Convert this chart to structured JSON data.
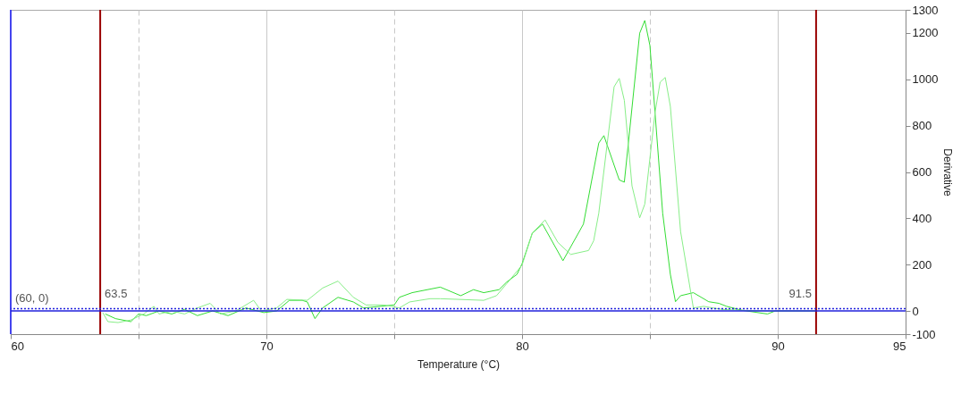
{
  "chart_data": {
    "type": "line",
    "xlabel": "Temperature (°C)",
    "ylabel": "Derivative",
    "xlim": [
      60,
      95
    ],
    "ylim": [
      -100,
      1300
    ],
    "xticks": [
      60,
      {
        "value": 65,
        "label": null
      },
      70,
      {
        "value": 75,
        "label": null
      },
      80,
      {
        "value": 85,
        "label": null
      },
      90,
      95
    ],
    "yticks": [
      -100,
      0,
      200,
      400,
      600,
      800,
      1000,
      1200,
      1300
    ],
    "grid": "x",
    "marker": "none",
    "line_style": "solid",
    "series": [
      {
        "color": "#33dd33",
        "x": [
          63.7,
          64.1,
          64.7,
          65.0,
          65.3,
          65.8,
          66.3,
          66.8,
          67.3,
          67.9,
          68.5,
          69.2,
          69.9,
          70.4,
          70.9,
          71.4,
          71.6,
          71.9,
          72.2,
          72.8,
          73.4,
          73.8,
          75.0,
          75.2,
          75.7,
          76.8,
          77.6,
          78.1,
          78.5,
          79.1,
          79.4,
          79.8,
          80.0,
          80.4,
          80.8,
          81.6,
          82.4,
          83.0,
          83.2,
          83.8,
          84.0,
          84.6,
          84.8,
          85.0,
          85.5,
          85.8,
          86.0,
          86.2,
          86.7,
          87.3,
          87.7,
          88.0,
          88.6,
          89.6,
          89.9,
          91.5
        ],
        "values": [
          -13,
          -33,
          -46,
          -13,
          -20,
          0,
          -13,
          7,
          -20,
          0,
          -20,
          13,
          -7,
          0,
          46,
          46,
          39,
          -33,
          13,
          59,
          39,
          13,
          26,
          59,
          79,
          103,
          66,
          92,
          79,
          92,
          125,
          158,
          204,
          336,
          375,
          217,
          375,
          725,
          757,
          566,
          556,
          1199,
          1254,
          1146,
          422,
          158,
          40,
          66,
          79,
          40,
          33,
          20,
          3,
          -13,
          0,
          0
        ]
      },
      {
        "color": "#88ee88",
        "x": [
          63.6,
          63.8,
          64.2,
          64.7,
          65.2,
          65.6,
          65.8,
          66.3,
          66.8,
          67.3,
          67.8,
          68.2,
          68.8,
          69.5,
          69.8,
          70.4,
          70.8,
          71.6,
          72.2,
          72.8,
          73.4,
          73.9,
          74.6,
          75.2,
          75.6,
          76.4,
          76.8,
          78.5,
          79.0,
          79.4,
          80.0,
          80.4,
          80.9,
          81.4,
          81.9,
          82.6,
          82.8,
          83.0,
          83.6,
          83.8,
          84.0,
          84.3,
          84.6,
          84.8,
          85.2,
          85.4,
          85.6,
          85.8,
          86.2,
          86.7,
          87.1,
          87.8,
          88.6,
          89.8,
          91.5
        ],
        "values": [
          -7,
          -46,
          -50,
          -39,
          -13,
          20,
          -13,
          0,
          -13,
          13,
          33,
          -13,
          0,
          46,
          0,
          13,
          50,
          46,
          99,
          129,
          59,
          26,
          26,
          13,
          39,
          53,
          53,
          46,
          66,
          118,
          198,
          336,
          393,
          296,
          244,
          261,
          303,
          422,
          968,
          1004,
          909,
          540,
          402,
          461,
          856,
          988,
          1008,
          883,
          343,
          13,
          20,
          7,
          3,
          0,
          0
        ]
      }
    ],
    "ref_lines": [
      {
        "axis": "x",
        "value": 60,
        "color": "#4444ee"
      },
      {
        "axis": "x",
        "value": 63.5,
        "label": "63.5",
        "color": "#990000"
      },
      {
        "axis": "x",
        "value": 91.5,
        "label": "91.5",
        "color": "#990000"
      },
      {
        "axis": "y",
        "value": 0,
        "color": "#2222dd"
      },
      {
        "axis": "y",
        "value": 10,
        "color": "#2222dd",
        "line_style": "dotted"
      }
    ],
    "annotations": [
      {
        "text": "(60, 0)",
        "x": 60,
        "y": 0
      }
    ]
  }
}
